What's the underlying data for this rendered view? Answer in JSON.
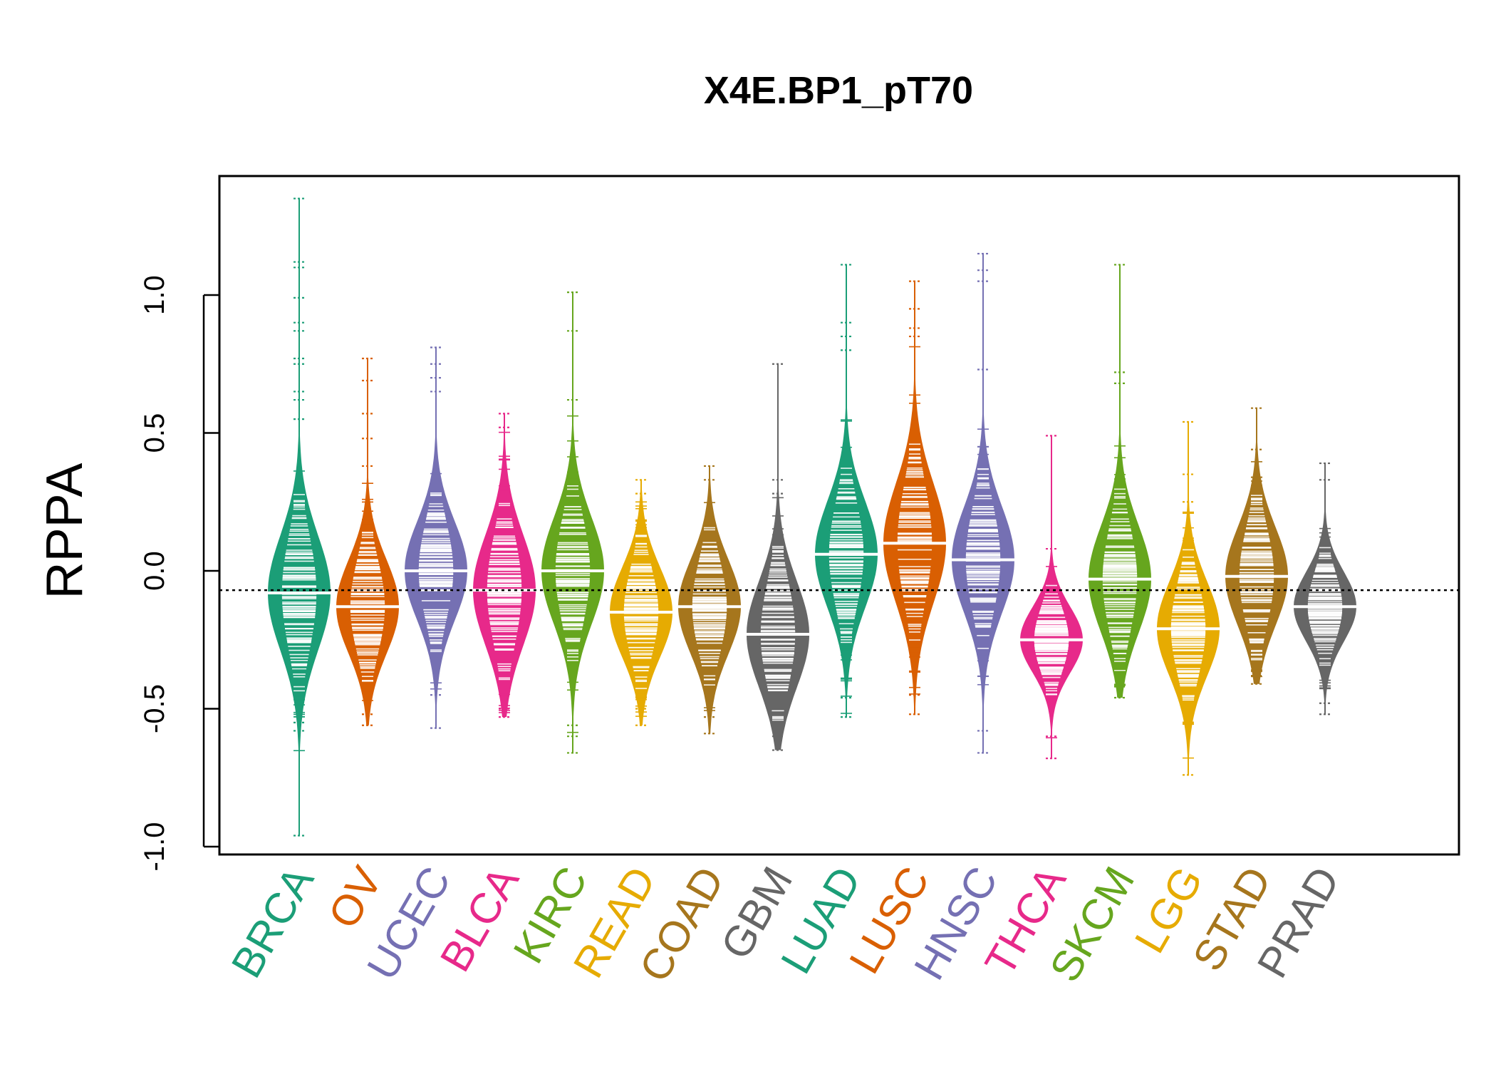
{
  "chart_data": {
    "type": "beanplot",
    "title": "X4E.BP1_pT70",
    "xlabel": "",
    "ylabel": "RPPA",
    "ylim": [
      -1.05,
      1.4
    ],
    "yticks": [
      -1.0,
      -0.5,
      0.0,
      0.5,
      1.0
    ],
    "ytick_labels": [
      "-1.0",
      "-0.5",
      "0.0",
      "0.5",
      "1.0"
    ],
    "overall_reference": -0.07,
    "categories": [
      "BRCA",
      "OV",
      "UCEC",
      "BLCA",
      "KIRC",
      "READ",
      "COAD",
      "GBM",
      "LUAD",
      "LUSC",
      "HNSC",
      "THCA",
      "SKCM",
      "LGG",
      "STAD",
      "PRAD"
    ],
    "series": [
      {
        "group": "BRCA",
        "color": "#1B9E77",
        "median": -0.08,
        "q1": -0.22,
        "q3": 0.06,
        "min": -0.96,
        "max": 1.35,
        "outliers": [
          1.35,
          1.12,
          1.1,
          0.99,
          0.9,
          0.87,
          0.77,
          0.75,
          0.65,
          0.62,
          0.55,
          -0.55,
          -0.58,
          -0.96
        ]
      },
      {
        "group": "OV",
        "color": "#D95F02",
        "median": -0.13,
        "q1": -0.25,
        "q3": -0.02,
        "min": -0.56,
        "max": 0.77,
        "outliers": [
          0.77,
          0.69,
          0.57,
          0.48,
          0.38,
          -0.52,
          -0.56
        ]
      },
      {
        "group": "UCEC",
        "color": "#7570B3",
        "median": 0.0,
        "q1": -0.12,
        "q3": 0.12,
        "min": -0.57,
        "max": 0.81,
        "outliers": [
          0.81,
          0.75,
          0.7,
          0.65,
          -0.45,
          -0.57
        ]
      },
      {
        "group": "BLCA",
        "color": "#E7298A",
        "median": -0.07,
        "q1": -0.2,
        "q3": 0.07,
        "min": -0.53,
        "max": 0.57,
        "outliers": [
          0.57,
          0.52,
          -0.5,
          -0.53
        ]
      },
      {
        "group": "KIRC",
        "color": "#66A61E",
        "median": 0.0,
        "q1": -0.14,
        "q3": 0.12,
        "min": -0.66,
        "max": 1.01,
        "outliers": [
          1.01,
          0.87,
          0.62,
          -0.56,
          -0.6,
          -0.66
        ]
      },
      {
        "group": "READ",
        "color": "#E6AB02",
        "median": -0.15,
        "q1": -0.27,
        "q3": -0.05,
        "min": -0.56,
        "max": 0.33,
        "outliers": [
          0.33,
          0.28,
          -0.5,
          -0.56
        ]
      },
      {
        "group": "COAD",
        "color": "#A6761D",
        "median": -0.13,
        "q1": -0.25,
        "q3": -0.02,
        "min": -0.59,
        "max": 0.38,
        "outliers": [
          0.38,
          0.33,
          -0.53,
          -0.59
        ]
      },
      {
        "group": "GBM",
        "color": "#666666",
        "median": -0.23,
        "q1": -0.36,
        "q3": -0.1,
        "min": -0.65,
        "max": 0.75,
        "outliers": [
          0.75,
          0.33,
          0.28,
          -0.6,
          -0.65
        ]
      },
      {
        "group": "LUAD",
        "color": "#1B9E77",
        "median": 0.06,
        "q1": -0.08,
        "q3": 0.18,
        "min": -0.53,
        "max": 1.11,
        "outliers": [
          1.11,
          0.9,
          0.85,
          0.8,
          -0.46,
          -0.53
        ]
      },
      {
        "group": "LUSC",
        "color": "#D95F02",
        "median": 0.1,
        "q1": -0.04,
        "q3": 0.25,
        "min": -0.52,
        "max": 1.05,
        "outliers": [
          1.05,
          0.95,
          0.88,
          0.85,
          -0.45,
          -0.52
        ]
      },
      {
        "group": "HNSC",
        "color": "#7570B3",
        "median": 0.04,
        "q1": -0.1,
        "q3": 0.16,
        "min": -0.66,
        "max": 1.15,
        "outliers": [
          1.15,
          1.09,
          1.05,
          0.73,
          -0.58,
          -0.66
        ]
      },
      {
        "group": "THCA",
        "color": "#E7298A",
        "median": -0.25,
        "q1": -0.33,
        "q3": -0.17,
        "min": -0.68,
        "max": 0.49,
        "outliers": [
          0.49,
          0.08,
          -0.6,
          -0.68
        ]
      },
      {
        "group": "SKCM",
        "color": "#66A61E",
        "median": -0.03,
        "q1": -0.16,
        "q3": 0.1,
        "min": -0.46,
        "max": 1.11,
        "outliers": [
          1.11,
          0.72,
          0.68,
          -0.42,
          -0.46
        ]
      },
      {
        "group": "LGG",
        "color": "#E6AB02",
        "median": -0.21,
        "q1": -0.33,
        "q3": -0.1,
        "min": -0.74,
        "max": 0.54,
        "outliers": [
          0.54,
          0.35,
          0.25,
          -0.55,
          -0.74
        ]
      },
      {
        "group": "STAD",
        "color": "#A6761D",
        "median": -0.02,
        "q1": -0.15,
        "q3": 0.09,
        "min": -0.41,
        "max": 0.59,
        "outliers": [
          0.59,
          0.44,
          -0.38,
          -0.41
        ]
      },
      {
        "group": "PRAD",
        "color": "#666666",
        "median": -0.13,
        "q1": -0.21,
        "q3": -0.04,
        "min": -0.52,
        "max": 0.39,
        "outliers": [
          0.39,
          0.33,
          -0.48,
          -0.52
        ]
      }
    ],
    "grid": false,
    "legend": "none"
  }
}
